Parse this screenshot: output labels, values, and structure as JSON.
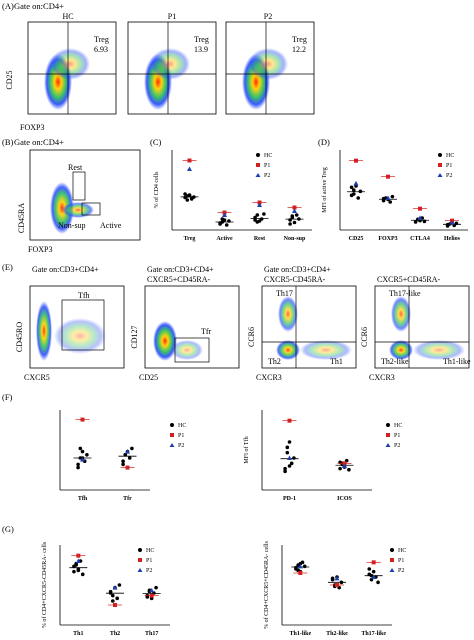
{
  "colors": {
    "hc": "#000000",
    "p1": "#d32020",
    "p2": "#1f3fb0"
  },
  "legend": {
    "hc": "HC",
    "p1": "P1",
    "p2": "P2"
  },
  "panelA": {
    "letter": "(A)",
    "gate": "Gate on:CD4+",
    "titles": [
      "HC",
      "P1",
      "P2"
    ],
    "gate_names": [
      "Treg",
      "Treg",
      "Treg"
    ],
    "values": [
      "6.93",
      "13.9",
      "12.2"
    ],
    "ylabel": "CD25",
    "xlabel": "FOXP3"
  },
  "panelB": {
    "letter": "(B)",
    "gate": "Gate on:CD4+",
    "rest": "Rest",
    "nonsup": "Non-sup",
    "active": "Active",
    "ylabel": "CD45RA",
    "xlabel": "FOXP3"
  },
  "panelE": {
    "letter": "(E)",
    "plots": [
      {
        "gate": "Gate on:CD3+CD4+",
        "gate2": "",
        "ylabel": "CD45RO",
        "xlabel": "CXCR5",
        "q1": "Tfh"
      },
      {
        "gate": "Gate on:CD3+CD4+",
        "gate2": "CXCR5+CD45RA-",
        "ylabel": "CD127",
        "xlabel": "CD25",
        "q1": "Tfr"
      },
      {
        "gate": "Gate on:CD3+CD4+",
        "gate2": "CXCR5-CD45RA-",
        "ylabel": "CCR6",
        "xlabel": "CXCR3",
        "q1": "Th17",
        "q2": "Th2",
        "q3": "Th1"
      },
      {
        "gate": "",
        "gate2": "CXCR5+CD45RA-",
        "ylabel": "CCR6",
        "xlabel": "CXCR3",
        "q1": "Th17-like",
        "q2": "Th2-like",
        "q3": "Th1-like"
      }
    ]
  },
  "chart_data": [
    {
      "id": "C",
      "type": "scatter",
      "letter": "(C)",
      "ylabel": "% of CD4 cells",
      "categories": [
        "Treg",
        "Active",
        "Rest",
        "Non-sup"
      ],
      "hc": [
        [
          6.5,
          6.8,
          7.0,
          6.2,
          6.6,
          7.2,
          6.0,
          6.9,
          6.4
        ],
        [
          1.2,
          1.6,
          2.0,
          1.0,
          1.8,
          1.4,
          2.2
        ],
        [
          2.5,
          3.0,
          1.8,
          2.2,
          3.2,
          2.0,
          1.6
        ],
        [
          2.0,
          2.8,
          1.5,
          3.0,
          2.2,
          1.2,
          2.5
        ]
      ],
      "p1": [
        13.9,
        3.5,
        5.5,
        4.5
      ],
      "p2": [
        12.2,
        3.0,
        5.0,
        3.8
      ],
      "ylim": [
        0,
        16
      ]
    },
    {
      "id": "D",
      "type": "scatter",
      "letter": "(D)",
      "ylabel": "MFI of active Treg",
      "categories": [
        "CD25",
        "FOXP3",
        "CTLA4",
        "Helios"
      ],
      "hc": [
        [
          2600,
          3000,
          3300,
          2400,
          2900,
          3200,
          2700
        ],
        [
          2200,
          2400,
          2300,
          2100,
          2500,
          2350
        ],
        [
          600,
          800,
          700,
          900,
          650
        ],
        [
          300,
          450,
          550,
          350,
          500,
          400
        ]
      ],
      "p1": [
        5200,
        4000,
        1600,
        700
      ],
      "p2": [
        3500,
        2400,
        900,
        550
      ],
      "ylim": [
        0,
        6000
      ]
    },
    {
      "id": "F1",
      "type": "scatter",
      "letter": "(F)",
      "ylabel": "",
      "categories": [
        "Tfh",
        "Tfr"
      ],
      "hc": [
        [
          8,
          10,
          12,
          9,
          11,
          7,
          13,
          10
        ],
        [
          9,
          11,
          12,
          10,
          13,
          8,
          11
        ]
      ],
      "p1": [
        22,
        7
      ],
      "p2": [
        9.5,
        12
      ],
      "ylim": [
        0,
        25
      ]
    },
    {
      "id": "F2",
      "type": "scatter",
      "letter": "",
      "ylabel": "MFI of Tfh",
      "categories": [
        "PD-1",
        "ICOS"
      ],
      "hc": [
        [
          400,
          700,
          900,
          500,
          600,
          350,
          800,
          450
        ],
        [
          400,
          500,
          450,
          550,
          380,
          520,
          480,
          430
        ]
      ],
      "p1": [
        1300,
        500
      ],
      "p2": [
        600,
        450
      ],
      "ylim": [
        0,
        1500
      ]
    },
    {
      "id": "G1",
      "type": "scatter",
      "letter": "(G)",
      "ylabel": "% of CD4+CXCR5-CD45RA- cells",
      "categories": [
        "Th1",
        "Th2",
        "Th17"
      ],
      "hc": [
        [
          40,
          45,
          42,
          48,
          38,
          44,
          46,
          41
        ],
        [
          25,
          22,
          28,
          20,
          30,
          24,
          18
        ],
        [
          22,
          26,
          20,
          24,
          28,
          21,
          25
        ]
      ],
      "p1": [
        52,
        15,
        22
      ],
      "p2": [
        48,
        28,
        26
      ],
      "ylim": [
        0,
        60
      ]
    },
    {
      "id": "G2",
      "type": "scatter",
      "letter": "",
      "ylabel": "% of CD4+CXCR5+CD45RA- cells",
      "categories": [
        "Th1-like",
        "Th2-like",
        "Th17-like"
      ],
      "hc": [
        [
          42,
          45,
          40,
          47,
          44,
          43,
          41,
          46
        ],
        [
          34,
          30,
          36,
          28,
          32,
          35,
          29
        ],
        [
          38,
          34,
          40,
          36,
          32,
          42,
          37
        ]
      ],
      "p1": [
        39,
        30,
        47
      ],
      "p2": [
        44,
        35,
        36
      ],
      "ylim": [
        0,
        60
      ]
    }
  ]
}
